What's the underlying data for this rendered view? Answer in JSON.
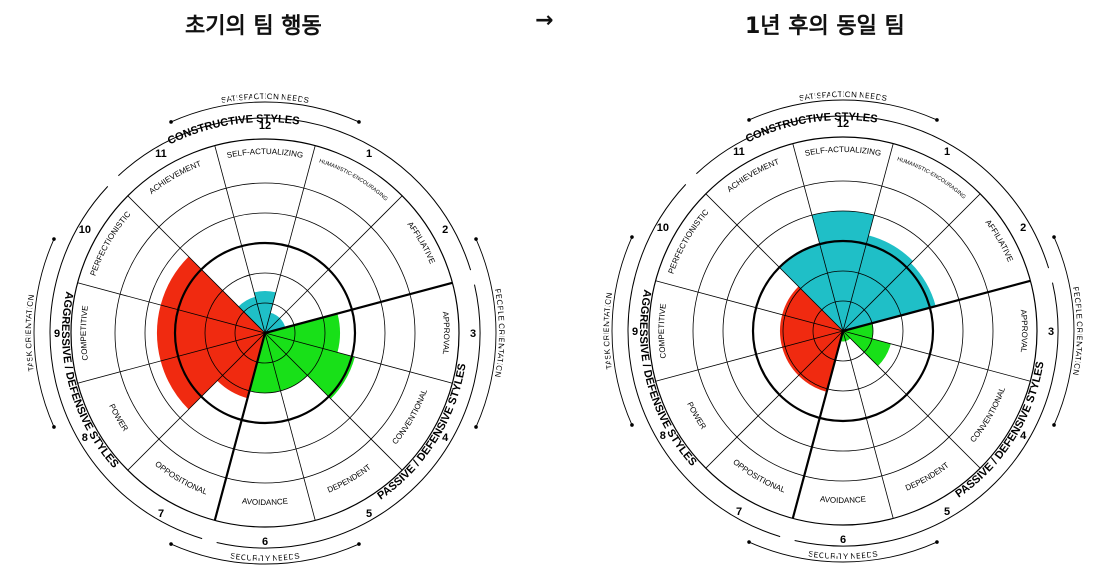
{
  "titles": {
    "left": "초기의 팀 행동",
    "arrow": "→",
    "right": "1년 후의 동일 팀"
  },
  "colors": {
    "constructive": "#1fbfc7",
    "passive": "#18e018",
    "aggressive": "#f02a10",
    "line": "#000000"
  },
  "circumplex": {
    "satisfaction_needs": "SATISFACTION NEEDS",
    "security_needs": "SECURITY NEEDS",
    "people_orientation": "PEOPLE ORIENTATION",
    "task_orientation": "TASK ORIENTATION",
    "constructive_styles": "CONSTRUCTIVE STYLES",
    "passive_styles": "PASSIVE / DEFENSIVE STYLES",
    "aggressive_styles": "AGGRESSIVE / DEFENSIVE STYLES",
    "segments": [
      {
        "num": "1",
        "name": "HUMANISTIC-ENCOURAGING"
      },
      {
        "num": "2",
        "name": "AFFILIATIVE"
      },
      {
        "num": "3",
        "name": "APPROVAL"
      },
      {
        "num": "4",
        "name": "CONVENTIONAL"
      },
      {
        "num": "5",
        "name": "DEPENDENT"
      },
      {
        "num": "6",
        "name": "AVOIDANCE"
      },
      {
        "num": "7",
        "name": "OPPOSITIONAL"
      },
      {
        "num": "8",
        "name": "POWER"
      },
      {
        "num": "9",
        "name": "COMPETITIVE"
      },
      {
        "num": "10",
        "name": "PERFECTIONISTIC"
      },
      {
        "num": "11",
        "name": "ACHIEVEMENT"
      },
      {
        "num": "12",
        "name": "SELF-ACTUALIZING"
      }
    ]
  },
  "chart_data": [
    {
      "type": "radial",
      "scale_max": 100,
      "segments": [
        "12",
        "1",
        "2",
        "3",
        "4",
        "5",
        "6",
        "7",
        "8",
        "9",
        "10",
        "11"
      ],
      "values": [
        28,
        14,
        14,
        50,
        62,
        40,
        40,
        45,
        72,
        72,
        72,
        25
      ]
    },
    {
      "type": "radial",
      "scale_max": 100,
      "segments": [
        "12",
        "1",
        "2",
        "3",
        "4",
        "5",
        "6",
        "7",
        "8",
        "9",
        "10",
        "11"
      ],
      "values": [
        80,
        66,
        64,
        20,
        33,
        7,
        7,
        42,
        42,
        42,
        42,
        60
      ]
    }
  ]
}
